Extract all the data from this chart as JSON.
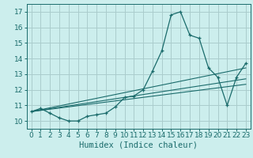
{
  "title": "",
  "xlabel": "Humidex (Indice chaleur)",
  "ylabel": "",
  "bg_color": "#cceeed",
  "grid_color": "#aacccc",
  "line_color": "#1a6b6b",
  "xlim": [
    -0.5,
    23.5
  ],
  "ylim": [
    9.5,
    17.5
  ],
  "xticks": [
    0,
    1,
    2,
    3,
    4,
    5,
    6,
    7,
    8,
    9,
    10,
    11,
    12,
    13,
    14,
    15,
    16,
    17,
    18,
    19,
    20,
    21,
    22,
    23
  ],
  "yticks": [
    10,
    11,
    12,
    13,
    14,
    15,
    16,
    17
  ],
  "curve1_x": [
    0,
    1,
    2,
    3,
    4,
    5,
    6,
    7,
    8,
    9,
    10,
    11,
    12,
    13,
    14,
    15,
    16,
    17,
    18,
    19,
    20,
    21,
    22,
    23
  ],
  "curve1_y": [
    10.6,
    10.8,
    10.5,
    10.2,
    10.0,
    10.0,
    10.3,
    10.4,
    10.5,
    10.9,
    11.5,
    11.6,
    12.0,
    13.2,
    14.5,
    16.8,
    17.0,
    15.5,
    15.3,
    13.4,
    12.8,
    11.0,
    12.8,
    13.7
  ],
  "line1_x": [
    0,
    23
  ],
  "line1_y": [
    10.6,
    13.4
  ],
  "line2_x": [
    0,
    23
  ],
  "line2_y": [
    10.6,
    12.7
  ],
  "line3_x": [
    0,
    23
  ],
  "line3_y": [
    10.6,
    12.35
  ],
  "tick_fontsize": 6.5,
  "xlabel_fontsize": 7.5
}
